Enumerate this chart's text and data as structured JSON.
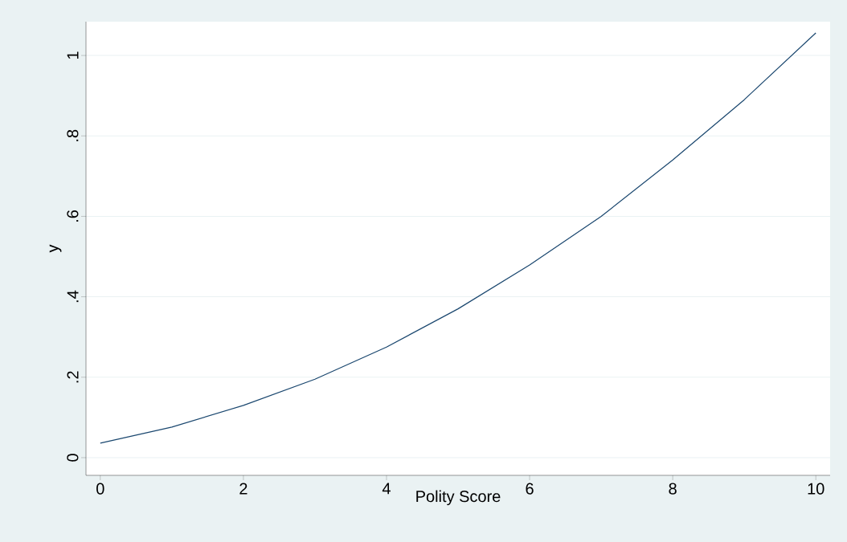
{
  "chart_data": {
    "type": "line",
    "xlabel": "Polity Score",
    "ylabel": "y",
    "x": [
      0,
      1,
      2,
      3,
      4,
      5,
      6,
      7,
      8,
      9,
      10
    ],
    "series": [
      {
        "color": "#1a476f",
        "values": [
          0.036,
          0.076,
          0.13,
          0.195,
          0.275,
          0.37,
          0.479,
          0.6,
          0.74,
          0.89,
          1.056
        ]
      }
    ],
    "xlim": [
      -0.2,
      10.2
    ],
    "ylim": [
      -0.044,
      1.084
    ],
    "xticks": [
      0,
      2,
      4,
      6,
      8,
      10
    ],
    "yticks": [
      0,
      {
        "value": 0.2,
        "label": ".2"
      },
      {
        "value": 0.4,
        "label": ".4"
      },
      {
        "value": 0.6,
        "label": ".6"
      },
      {
        "value": 0.8,
        "label": ".8"
      },
      1
    ],
    "grid": "y",
    "marker": "none",
    "line_style": "solid"
  }
}
